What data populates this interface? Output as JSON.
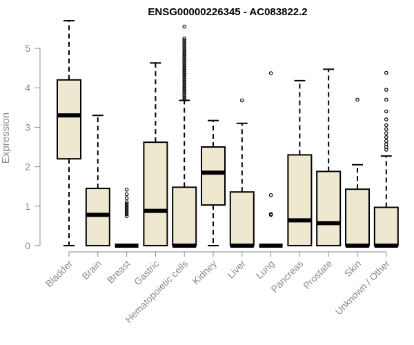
{
  "chart_data": {
    "type": "boxplot",
    "title": "ENSG00000226345 - AC083822.2",
    "ylabel": "Expression",
    "xlabel": "",
    "ylim": [
      0,
      5.7
    ],
    "yticks": [
      0,
      1,
      2,
      3,
      4,
      5
    ],
    "box_fill": "#efe8d0",
    "box_stroke": "#000000",
    "axis_color": "#8a8a8a",
    "categories": [
      "Bladder",
      "Brain",
      "Breast",
      "Gastric",
      "Hematopoietic cells",
      "Kidney",
      "Liver",
      "Lung",
      "Pancreas",
      "Prostate",
      "Skin",
      "Unknown / Other"
    ],
    "boxes": [
      {
        "q1": 2.2,
        "median": 3.3,
        "q3": 4.2,
        "whisker_low": 0.0,
        "whisker_high": 5.7,
        "outliers": []
      },
      {
        "q1": 0.0,
        "median": 0.78,
        "q3": 1.45,
        "whisker_low": 0.0,
        "whisker_high": 3.3,
        "outliers": []
      },
      {
        "q1": 0.0,
        "median": 0.0,
        "q3": 0.0,
        "whisker_low": 0.0,
        "whisker_high": 0.0,
        "outliers": [
          0.75,
          0.8,
          0.85,
          0.9,
          0.95,
          1.0,
          1.05,
          1.1,
          1.2,
          1.3,
          1.42
        ]
      },
      {
        "q1": 0.0,
        "median": 0.88,
        "q3": 2.62,
        "whisker_low": 0.0,
        "whisker_high": 4.63,
        "outliers": []
      },
      {
        "q1": 0.0,
        "median": 0.0,
        "q3": 1.48,
        "whisker_low": 0.0,
        "whisker_high": 3.68,
        "outliers": [
          3.7,
          3.75,
          3.8,
          3.85,
          3.9,
          3.95,
          4.0,
          4.05,
          4.1,
          4.15,
          4.2,
          4.25,
          4.3,
          4.35,
          4.4,
          4.45,
          4.5,
          4.55,
          4.6,
          4.65,
          4.7,
          4.75,
          4.8,
          4.85,
          4.9,
          4.95,
          5.0,
          5.05,
          5.1,
          5.15,
          5.2,
          5.25,
          5.55
        ]
      },
      {
        "q1": 1.03,
        "median": 1.85,
        "q3": 2.5,
        "whisker_low": 0.0,
        "whisker_high": 3.17,
        "outliers": []
      },
      {
        "q1": 0.0,
        "median": 0.0,
        "q3": 1.36,
        "whisker_low": 0.0,
        "whisker_high": 3.1,
        "outliers": [
          3.68
        ]
      },
      {
        "q1": 0.0,
        "median": 0.0,
        "q3": 0.0,
        "whisker_low": 0.0,
        "whisker_high": 0.0,
        "outliers": [
          0.78,
          0.8,
          1.28,
          4.37
        ]
      },
      {
        "q1": 0.0,
        "median": 0.64,
        "q3": 2.3,
        "whisker_low": 0.0,
        "whisker_high": 4.18,
        "outliers": []
      },
      {
        "q1": 0.0,
        "median": 0.57,
        "q3": 1.88,
        "whisker_low": 0.0,
        "whisker_high": 4.47,
        "outliers": []
      },
      {
        "q1": 0.0,
        "median": 0.0,
        "q3": 1.43,
        "whisker_low": 0.0,
        "whisker_high": 2.05,
        "outliers": [
          3.7
        ]
      },
      {
        "q1": 0.0,
        "median": 0.0,
        "q3": 0.97,
        "whisker_low": 0.0,
        "whisker_high": 2.27,
        "outliers": [
          2.43,
          2.5,
          2.57,
          2.65,
          2.75,
          2.85,
          2.95,
          3.05,
          3.2,
          3.4,
          3.7,
          3.95,
          4.38
        ]
      }
    ]
  }
}
